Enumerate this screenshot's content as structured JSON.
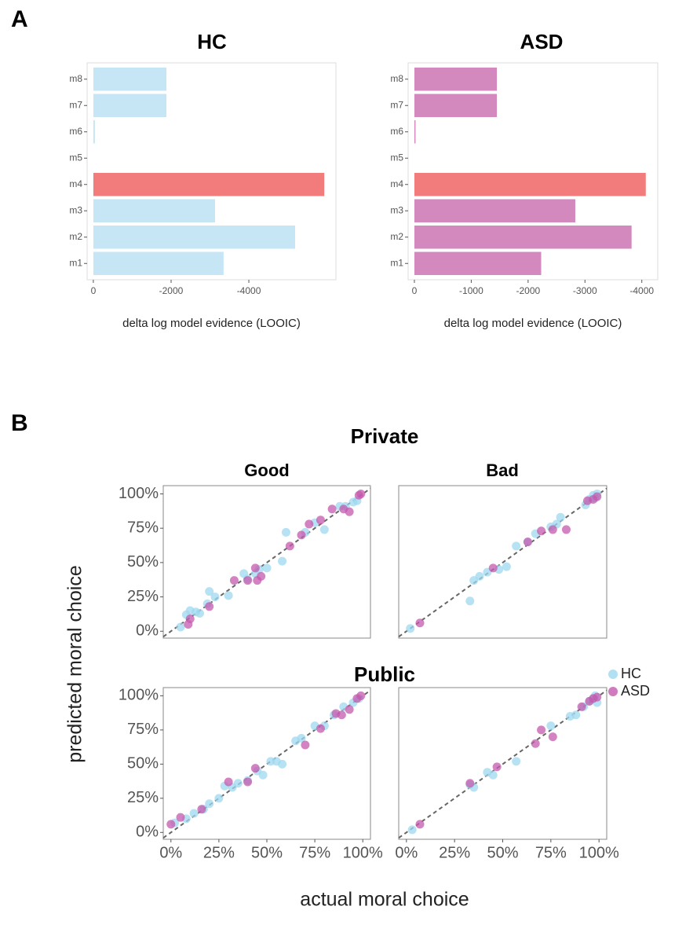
{
  "panel_labels": [
    "A",
    "B"
  ],
  "group_titles": [
    "Private",
    "Public"
  ],
  "axis_labels": {
    "x": "actual moral choice",
    "y": "predicted moral choice"
  },
  "chart_data": [
    {
      "type": "bar",
      "orientation": "horizontal",
      "title": "HC",
      "x_label": "delta log model evidence (LOOIC)",
      "categories": [
        "m1",
        "m2",
        "m3",
        "m4",
        "m5",
        "m6",
        "m7",
        "m8"
      ],
      "values": [
        -3350,
        -5190,
        -3130,
        -5940,
        0,
        -40,
        -1880,
        -1880
      ],
      "colors": [
        "#c6e6f6",
        "#c6e6f6",
        "#c6e6f6",
        "#f27c7c",
        "#c6e6f6",
        "#c6e6f6",
        "#c6e6f6",
        "#c6e6f6"
      ],
      "xlim": [
        160,
        -6240
      ],
      "xticks": [
        0,
        -2000,
        -4000
      ]
    },
    {
      "type": "bar",
      "orientation": "horizontal",
      "title": "ASD",
      "x_label": "delta log model evidence (LOOIC)",
      "categories": [
        "m1",
        "m2",
        "m3",
        "m4",
        "m5",
        "m6",
        "m7",
        "m8"
      ],
      "values": [
        -2230,
        -3820,
        -2830,
        -4070,
        0,
        -20,
        -1450,
        -1450
      ],
      "colors": [
        "#d389bd",
        "#d389bd",
        "#d389bd",
        "#f27c7c",
        "#d389bd",
        "#d389bd",
        "#d389bd",
        "#d389bd"
      ],
      "xlim": [
        110,
        -4280
      ],
      "xticks": [
        0,
        -1000,
        -2000,
        -3000,
        -4000
      ]
    },
    {
      "type": "scatter",
      "title": "Good",
      "diagonal": true,
      "xlim": [
        -4,
        104
      ],
      "ylim": [
        -5,
        106
      ],
      "yticks": [
        {
          "value": 0,
          "label": "0%"
        },
        {
          "value": 25,
          "label": "25%"
        },
        {
          "value": 50,
          "label": "50%"
        },
        {
          "value": 75,
          "label": "75%"
        },
        {
          "value": 100,
          "label": "100%"
        }
      ],
      "series": [
        {
          "name": "HC",
          "color": "#9fd8f0",
          "x": [
            5,
            8,
            10,
            13,
            15,
            19,
            20,
            23,
            30,
            38,
            40,
            44,
            46,
            50,
            58,
            60,
            70,
            75,
            80,
            88,
            91,
            95,
            97
          ],
          "values": [
            3,
            12,
            15,
            14,
            13,
            20,
            29,
            25,
            26,
            42,
            38,
            42,
            45,
            46,
            51,
            72,
            72,
            79,
            74,
            91,
            91,
            94,
            95
          ]
        },
        {
          "name": "ASD",
          "color": "#c45aae",
          "x": [
            9,
            10,
            20,
            33,
            40,
            44,
            45,
            47,
            62,
            68,
            72,
            78,
            84,
            90,
            93,
            98,
            99
          ],
          "values": [
            5,
            9,
            18,
            37,
            37,
            46,
            37,
            40,
            62,
            70,
            78,
            81,
            89,
            89,
            87,
            99,
            100
          ]
        }
      ]
    },
    {
      "type": "scatter",
      "title": "Bad",
      "diagonal": true,
      "xlim": [
        -4,
        104
      ],
      "ylim": [
        -5,
        106
      ],
      "series": [
        {
          "name": "HC",
          "color": "#9fd8f0",
          "x": [
            2,
            33,
            35,
            38,
            42,
            48,
            52,
            57,
            63,
            67,
            75,
            78,
            80,
            93,
            95,
            97,
            98,
            99
          ],
          "values": [
            2,
            22,
            37,
            40,
            43,
            45,
            47,
            62,
            65,
            71,
            76,
            78,
            83,
            92,
            96,
            99,
            97,
            100
          ]
        },
        {
          "name": "ASD",
          "color": "#c45aae",
          "x": [
            7,
            45,
            63,
            70,
            76,
            83,
            94,
            97,
            99
          ],
          "values": [
            6,
            46,
            65,
            73,
            74,
            74,
            95,
            96,
            98
          ]
        }
      ]
    },
    {
      "type": "scatter",
      "diagonal": true,
      "xlim": [
        -4,
        104
      ],
      "ylim": [
        -5,
        106
      ],
      "yticks": [
        {
          "value": 0,
          "label": "0%"
        },
        {
          "value": 25,
          "label": "25%"
        },
        {
          "value": 50,
          "label": "50%"
        },
        {
          "value": 75,
          "label": "75%"
        },
        {
          "value": 100,
          "label": "100%"
        }
      ],
      "xticks": [
        {
          "value": 0,
          "label": "0%"
        },
        {
          "value": 25,
          "label": "25%"
        },
        {
          "value": 50,
          "label": "50%"
        },
        {
          "value": 75,
          "label": "75%"
        },
        {
          "value": 100,
          "label": "100%"
        }
      ],
      "series": [
        {
          "name": "HC",
          "color": "#9fd8f0",
          "x": [
            2,
            8,
            12,
            17,
            20,
            25,
            28,
            32,
            35,
            40,
            45,
            48,
            52,
            55,
            58,
            65,
            68,
            75,
            80,
            85,
            90,
            95,
            98
          ],
          "values": [
            7,
            10,
            14,
            17,
            21,
            25,
            34,
            33,
            36,
            38,
            45,
            42,
            52,
            52,
            50,
            67,
            69,
            78,
            78,
            86,
            92,
            95,
            98
          ]
        },
        {
          "name": "ASD",
          "color": "#c45aae",
          "x": [
            0,
            5,
            16,
            30,
            40,
            44,
            70,
            78,
            86,
            89,
            93,
            97,
            99
          ],
          "values": [
            6,
            11,
            17,
            37,
            37,
            47,
            64,
            76,
            87,
            86,
            90,
            98,
            100
          ]
        }
      ]
    },
    {
      "type": "scatter",
      "diagonal": true,
      "xlim": [
        -4,
        104
      ],
      "ylim": [
        -5,
        106
      ],
      "xticks": [
        {
          "value": 0,
          "label": "0%"
        },
        {
          "value": 25,
          "label": "25%"
        },
        {
          "value": 50,
          "label": "50%"
        },
        {
          "value": 75,
          "label": "75%"
        },
        {
          "value": 100,
          "label": "100%"
        }
      ],
      "series": [
        {
          "name": "HC",
          "color": "#9fd8f0",
          "x": [
            3,
            33,
            35,
            42,
            45,
            57,
            75,
            85,
            88,
            92,
            95,
            97,
            98,
            99
          ],
          "values": [
            2,
            35,
            33,
            44,
            42,
            52,
            78,
            85,
            86,
            92,
            96,
            98,
            100,
            95
          ]
        },
        {
          "name": "ASD",
          "color": "#c45aae",
          "x": [
            7,
            33,
            47,
            67,
            70,
            76,
            91,
            95,
            97,
            99
          ],
          "values": [
            6,
            36,
            48,
            65,
            75,
            70,
            92,
            96,
            98,
            99
          ]
        }
      ]
    }
  ]
}
